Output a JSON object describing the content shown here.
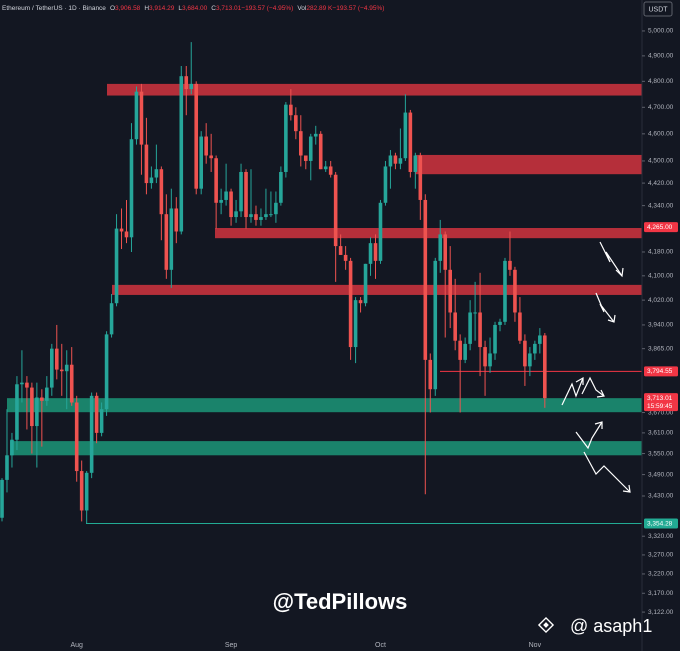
{
  "chart_data": {
    "type": "candlestick",
    "header": {
      "symbol": "Ethereum / TetherUS · 1D · Binance",
      "fields": [
        {
          "key": "O",
          "value": "3,906.58"
        },
        {
          "key": "H",
          "value": "3,914.29"
        },
        {
          "key": "L",
          "value": "3,684.00"
        },
        {
          "key": "C",
          "value": "3,713.01"
        },
        {
          "key": "",
          "value": "−193.57 (−4.95%)"
        },
        {
          "key": "Vol",
          "value": "282.89 K"
        },
        {
          "key": "",
          "value": "−193.57 (−4.95%)"
        }
      ]
    },
    "currency": "USDT",
    "watermark": "@TedPillows",
    "credit": "@ asaph1",
    "up_color": "#26a69a",
    "down_color": "#ef5350",
    "log_scale": true,
    "ylim": [
      3077,
      5127
    ],
    "yticks": [
      {
        "value": 5000,
        "label": "5,000.00"
      },
      {
        "value": 4900,
        "label": "4,900.00"
      },
      {
        "value": 4800,
        "label": "4,800.00"
      },
      {
        "value": 4700,
        "label": "4,700.00"
      },
      {
        "value": 4600,
        "label": "4,600.00"
      },
      {
        "value": 4500,
        "label": "4,500.00"
      },
      {
        "value": 4420,
        "label": "4,420.00"
      },
      {
        "value": 4340,
        "label": "4,340.00"
      },
      {
        "value": 4180,
        "label": "4,180.00"
      },
      {
        "value": 4100,
        "label": "4,100.00"
      },
      {
        "value": 4020,
        "label": "4,020.00"
      },
      {
        "value": 3940,
        "label": "3,940.00"
      },
      {
        "value": 3865,
        "label": "3,865.00"
      },
      {
        "value": 3670,
        "label": "3,670.00"
      },
      {
        "value": 3610,
        "label": "3,610.00"
      },
      {
        "value": 3550,
        "label": "3,550.00"
      },
      {
        "value": 3490,
        "label": "3,490.00"
      },
      {
        "value": 3430,
        "label": "3,430.00"
      },
      {
        "value": 3320,
        "label": "3,320.00"
      },
      {
        "value": 3270,
        "label": "3,270.00"
      },
      {
        "value": 3220,
        "label": "3,220.00"
      },
      {
        "value": 3170,
        "label": "3,170.00"
      },
      {
        "value": 3122,
        "label": "3,122.00"
      }
    ],
    "price_labels": [
      {
        "value": 4265,
        "label": "4,265.00",
        "color": "#f23645",
        "line": false
      },
      {
        "value": 3794.55,
        "label": "3,794.55",
        "color": "#f23645",
        "line": true
      },
      {
        "value": 3713.01,
        "label": "3,713.01",
        "color": "#f23645",
        "line": false
      },
      {
        "value": 3354.28,
        "label": "3,354.28",
        "color": "#22ab94",
        "line": true
      }
    ],
    "countdown": "15:59:45",
    "zones": [
      {
        "low": 4745,
        "high": 4790,
        "color": "#c8323d"
      },
      {
        "low": 4452,
        "high": 4522,
        "color": "#c8323d"
      },
      {
        "low": 4227,
        "high": 4262,
        "color": "#c8323d"
      },
      {
        "low": 4037,
        "high": 4070,
        "color": "#c8323d"
      },
      {
        "low": 3671,
        "high": 3713,
        "color": "#1c8f73"
      },
      {
        "low": 3545,
        "high": 3586,
        "color": "#1c8f73"
      }
    ],
    "categories": [
      null,
      null,
      null,
      null,
      null,
      null,
      null,
      null,
      null,
      null,
      null,
      null,
      null,
      null,
      null,
      "Aug",
      null,
      null,
      null,
      null,
      null,
      null,
      null,
      null,
      null,
      null,
      null,
      null,
      null,
      null,
      null,
      null,
      null,
      null,
      null,
      null,
      null,
      null,
      null,
      null,
      null,
      null,
      null,
      null,
      null,
      null,
      "Sep",
      null,
      null,
      null,
      null,
      null,
      null,
      null,
      null,
      null,
      null,
      null,
      null,
      null,
      null,
      null,
      null,
      null,
      null,
      null,
      null,
      null,
      null,
      null,
      null,
      null,
      null,
      null,
      null,
      null,
      "Oct",
      null,
      null,
      null,
      null,
      null,
      null,
      null,
      null,
      null,
      null,
      null,
      null,
      null,
      null,
      null,
      null,
      null,
      null,
      null,
      null,
      null,
      null,
      null,
      null,
      null,
      null,
      null,
      null,
      null,
      null,
      "Nov",
      null,
      null
    ],
    "open": [
      3370,
      3475,
      3545,
      3590,
      3755,
      3760,
      3745,
      3630,
      3715,
      3705,
      3745,
      3865,
      3800,
      3795,
      3815,
      3700,
      3500,
      3390,
      3495,
      3720,
      3610,
      3680,
      3910,
      4010,
      4260,
      4250,
      4230,
      4580,
      4760,
      4560,
      4420,
      4440,
      4470,
      4310,
      4120,
      4330,
      4250,
      4820,
      4770,
      4790,
      4400,
      4590,
      4520,
      4510,
      4350,
      4360,
      4390,
      4300,
      4320,
      4460,
      4300,
      4310,
      4290,
      4300,
      4310,
      4310,
      4350,
      4460,
      4710,
      4670,
      4610,
      4520,
      4500,
      4590,
      4600,
      4470,
      4480,
      4450,
      4200,
      4170,
      4150,
      3870,
      4020,
      4010,
      4140,
      4210,
      4150,
      4350,
      4480,
      4520,
      4490,
      4510,
      4680,
      4460,
      4520,
      4360,
      3830,
      3740,
      4150,
      4240,
      4120,
      3980,
      3890,
      3830,
      3880,
      3980,
      3980,
      3870,
      3810,
      3850,
      3940,
      3950,
      4150,
      4120,
      3980,
      3890,
      3810,
      3850,
      3880,
      3906.58
    ],
    "high": [
      3480,
      3680,
      3610,
      3780,
      3860,
      3780,
      3760,
      3760,
      3740,
      3780,
      3880,
      3940,
      3880,
      3860,
      3870,
      3720,
      3530,
      3500,
      3730,
      3730,
      3700,
      3920,
      4040,
      4310,
      4330,
      4360,
      4640,
      4780,
      4790,
      4660,
      4480,
      4560,
      4480,
      4380,
      4400,
      4370,
      4860,
      4860,
      4955,
      4800,
      4610,
      4640,
      4600,
      4520,
      4400,
      4490,
      4400,
      4360,
      4490,
      4470,
      4470,
      4340,
      4330,
      4400,
      4390,
      4390,
      4480,
      4720,
      4770,
      4700,
      4670,
      4520,
      4600,
      4630,
      4610,
      4500,
      4500,
      4460,
      4240,
      4200,
      4160,
      4030,
      4030,
      4140,
      4230,
      4240,
      4360,
      4500,
      4540,
      4530,
      4620,
      4750,
      4690,
      4530,
      4530,
      4380,
      3850,
      4160,
      4290,
      4250,
      4200,
      4090,
      3910,
      3900,
      4020,
      4080,
      4110,
      3890,
      3900,
      3950,
      3960,
      4160,
      4250,
      4130,
      4030,
      3910,
      3870,
      3890,
      3930,
      3914.29
    ],
    "low": [
      3360,
      3440,
      3510,
      3560,
      3700,
      3620,
      3550,
      3510,
      3570,
      3690,
      3720,
      3770,
      3720,
      3680,
      3690,
      3470,
      3360,
      3354,
      3480,
      3580,
      3600,
      3660,
      3900,
      4000,
      4190,
      4210,
      4180,
      4560,
      4450,
      4380,
      4400,
      4420,
      4220,
      4090,
      4060,
      4210,
      4240,
      4670,
      4750,
      4380,
      4380,
      4490,
      4460,
      4260,
      4310,
      4340,
      4270,
      4280,
      4300,
      4260,
      4280,
      4270,
      4270,
      4290,
      4300,
      4280,
      4340,
      4440,
      4650,
      4580,
      4480,
      4470,
      4430,
      4560,
      4470,
      4460,
      4440,
      4080,
      4170,
      4120,
      3830,
      3820,
      3980,
      4000,
      4100,
      4090,
      4140,
      4340,
      4400,
      4470,
      4470,
      4500,
      4440,
      4400,
      4290,
      3435,
      3670,
      3720,
      4110,
      3900,
      3930,
      3860,
      3670,
      3820,
      3860,
      3890,
      3780,
      3720,
      3790,
      3830,
      3920,
      3940,
      4100,
      3950,
      3880,
      3750,
      3780,
      3830,
      3850,
      3684
    ],
    "close": [
      3475,
      3545,
      3590,
      3755,
      3760,
      3745,
      3630,
      3715,
      3705,
      3745,
      3865,
      3800,
      3795,
      3815,
      3700,
      3500,
      3390,
      3495,
      3720,
      3610,
      3680,
      3910,
      4010,
      4260,
      4250,
      4230,
      4580,
      4760,
      4560,
      4420,
      4440,
      4470,
      4310,
      4120,
      4330,
      4250,
      4820,
      4770,
      4790,
      4400,
      4590,
      4520,
      4510,
      4350,
      4360,
      4390,
      4300,
      4320,
      4460,
      4300,
      4310,
      4290,
      4300,
      4310,
      4310,
      4350,
      4460,
      4710,
      4670,
      4610,
      4520,
      4500,
      4590,
      4600,
      4470,
      4480,
      4450,
      4200,
      4170,
      4150,
      3870,
      4020,
      4010,
      4140,
      4210,
      4150,
      4350,
      4480,
      4520,
      4490,
      4510,
      4680,
      4460,
      4520,
      4360,
      3830,
      3740,
      4150,
      4240,
      4120,
      3980,
      3890,
      3830,
      3880,
      3980,
      3980,
      3870,
      3810,
      3850,
      3940,
      3950,
      4150,
      4120,
      3980,
      3890,
      3810,
      3850,
      3880,
      3906.58,
      3713.01
    ]
  }
}
